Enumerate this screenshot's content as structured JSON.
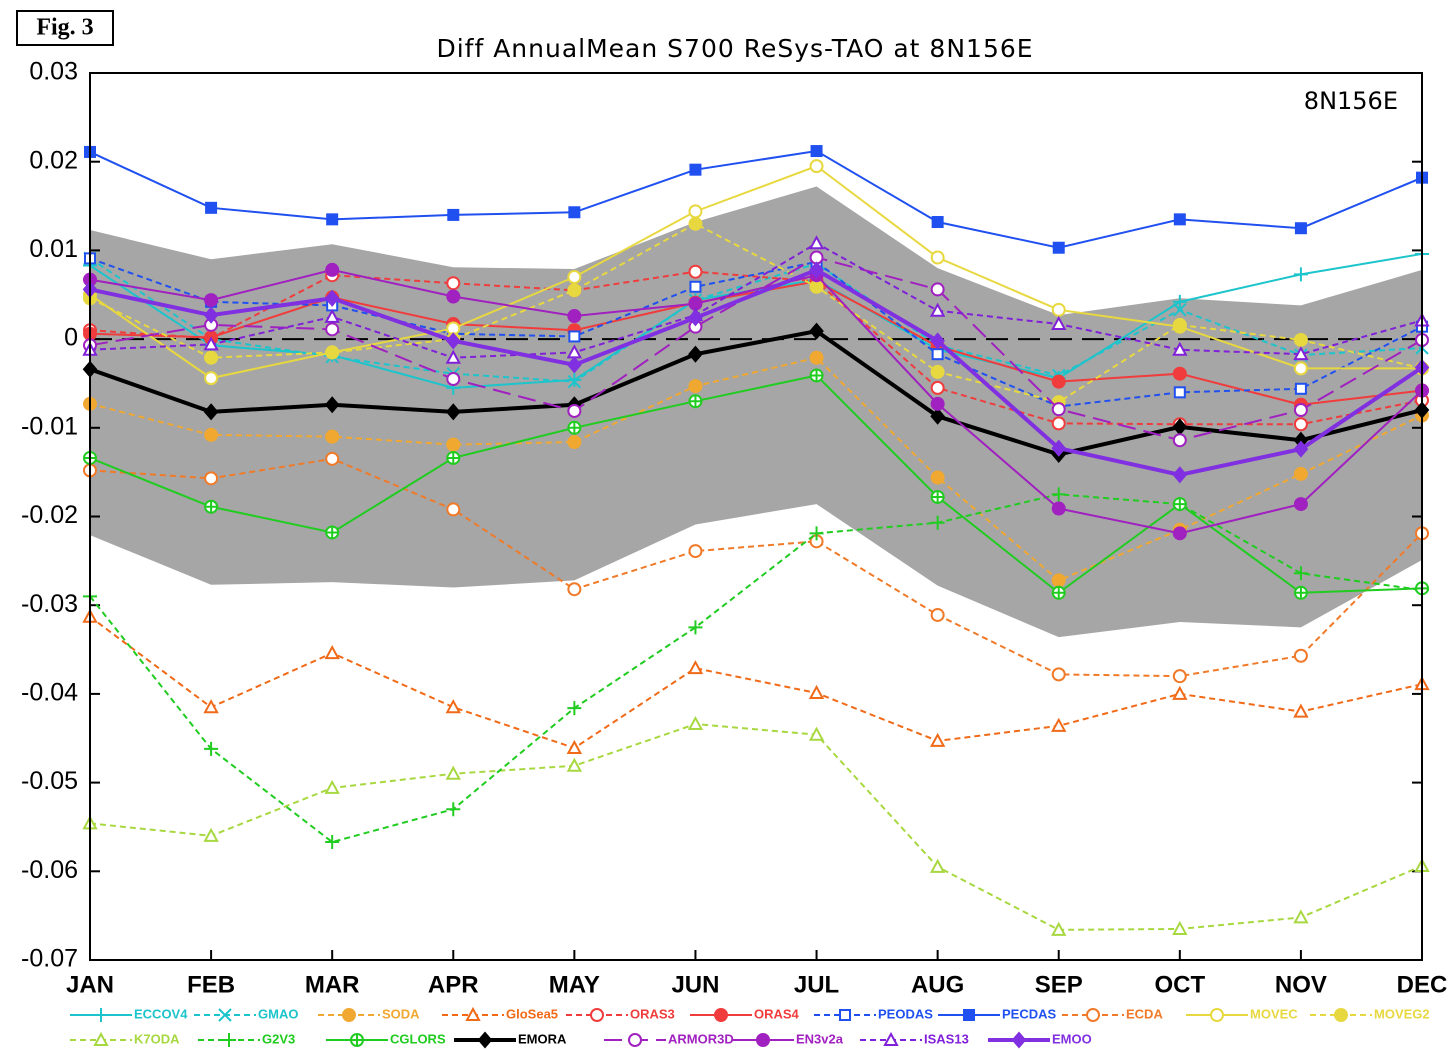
{
  "figure_label": "Fig. 3",
  "chart_data": {
    "type": "line",
    "title": "Diff AnnualMean S700 ReSys-TAO at 8N156E",
    "annotation": "8N156E",
    "categories": [
      "JAN",
      "FEB",
      "MAR",
      "APR",
      "MAY",
      "JUN",
      "JUL",
      "AUG",
      "SEP",
      "OCT",
      "NOV",
      "DEC"
    ],
    "ylim": [
      -0.07,
      0.03
    ],
    "yticks": [
      -0.07,
      -0.06,
      -0.05,
      -0.04,
      -0.03,
      -0.02,
      -0.01,
      0,
      0.01,
      0.02,
      0.03
    ],
    "reference_line": 0,
    "band": {
      "color": "#a6a6a6",
      "upper": [
        0.0123,
        0.009,
        0.0107,
        0.0081,
        0.0079,
        0.0132,
        0.0172,
        0.008,
        0.0027,
        0.0046,
        0.0038,
        0.0078
      ],
      "lower": [
        -0.0221,
        -0.0277,
        -0.0274,
        -0.028,
        -0.0272,
        -0.0209,
        -0.0186,
        -0.0278,
        -0.0336,
        -0.0319,
        -0.0325,
        -0.0249
      ]
    },
    "series": [
      {
        "name": "ECCOV4",
        "color": "#1cc4cc",
        "marker": "plus",
        "dash": "solid",
        "values": [
          0.0083,
          -0.0007,
          -0.0018,
          -0.0055,
          -0.0046,
          0.0044,
          0.0067,
          -0.0012,
          -0.0044,
          0.0042,
          0.0073,
          0.0096
        ]
      },
      {
        "name": "GMAO",
        "color": "#1cc4cc",
        "marker": "x",
        "dash": "dashed",
        "values": [
          0.0091,
          0,
          -0.002,
          -0.0039,
          -0.0048,
          0.0044,
          0.0085,
          -0.0007,
          -0.0041,
          0.0033,
          -0.0018,
          -0.001
        ]
      },
      {
        "name": "SODA",
        "color": "#f0a830",
        "marker": "circle-filled",
        "dash": "dashed",
        "values": [
          -0.0073,
          -0.0108,
          -0.011,
          -0.0119,
          -0.0116,
          -0.0053,
          -0.0021,
          -0.0156,
          -0.0272,
          -0.0215,
          -0.0152,
          -0.0086
        ]
      },
      {
        "name": "GloSea5",
        "color": "#f06a18",
        "marker": "triangle-open",
        "dash": "dashed",
        "values": [
          -0.0313,
          -0.0415,
          -0.0354,
          -0.0415,
          -0.0461,
          -0.0371,
          -0.0399,
          -0.0453,
          -0.0436,
          -0.04,
          -0.042,
          -0.0389
        ]
      },
      {
        "name": "ORAS3",
        "color": "#f03c3c",
        "marker": "circle-open",
        "dash": "dashed",
        "values": [
          0.001,
          0.0001,
          0.0072,
          0.0063,
          0.0055,
          0.0076,
          0.0065,
          -0.0055,
          -0.0095,
          -0.0096,
          -0.0096,
          -0.0069
        ]
      },
      {
        "name": "ORAS4",
        "color": "#f03c3c",
        "marker": "circle-filled",
        "dash": "solid",
        "values": [
          0.0006,
          0.0002,
          0.0047,
          0.0017,
          0.001,
          0.0041,
          0.0065,
          -0.0008,
          -0.0048,
          -0.0039,
          -0.0074,
          -0.0058
        ]
      },
      {
        "name": "PEODAS",
        "color": "#2050f0",
        "marker": "square-open",
        "dash": "dashed",
        "values": [
          0.0091,
          0.0042,
          0.0038,
          0.0006,
          0.0003,
          0.0059,
          0.0087,
          -0.0017,
          -0.0076,
          -0.006,
          -0.0056,
          0.0014
        ]
      },
      {
        "name": "PECDAS",
        "color": "#2050f0",
        "marker": "square-filled",
        "dash": "solid",
        "values": [
          0.0211,
          0.0148,
          0.0135,
          0.014,
          0.0143,
          0.0191,
          0.0212,
          0.0132,
          0.0103,
          0.0135,
          0.0125,
          0.0182
        ]
      },
      {
        "name": "ECDA",
        "color": "#f07a28",
        "marker": "circle-open",
        "dash": "dashed",
        "values": [
          -0.0148,
          -0.0157,
          -0.0135,
          -0.0192,
          -0.0282,
          -0.0239,
          -0.0228,
          -0.0311,
          -0.0378,
          -0.038,
          -0.0357,
          -0.0219
        ]
      },
      {
        "name": "MOVEC",
        "color": "#e8d840",
        "marker": "circle-open",
        "dash": "solid",
        "values": [
          0.005,
          -0.0044,
          -0.0015,
          0.0012,
          0.007,
          0.0144,
          0.0195,
          0.0092,
          0.0033,
          0.0014,
          -0.0033,
          -0.0033
        ]
      },
      {
        "name": "MOVEG2",
        "color": "#e8d840",
        "marker": "circle-filled",
        "dash": "dashed",
        "values": [
          0.0046,
          -0.0021,
          -0.0015,
          0,
          0.0055,
          0.013,
          0.0059,
          -0.0037,
          -0.0071,
          0.0016,
          -0.0001,
          -0.0033
        ]
      },
      {
        "name": "K7ODA",
        "color": "#a8d840",
        "marker": "triangle-open",
        "dash": "dashed",
        "values": [
          -0.0546,
          -0.056,
          -0.0506,
          -0.049,
          -0.0481,
          -0.0434,
          -0.0446,
          -0.0595,
          -0.0666,
          -0.0665,
          -0.0652,
          -0.0594
        ]
      },
      {
        "name": "G2V3",
        "color": "#20cc20",
        "marker": "plus",
        "dash": "dashed",
        "values": [
          -0.029,
          -0.0462,
          -0.0567,
          -0.053,
          -0.0416,
          -0.0325,
          -0.0219,
          -0.0207,
          -0.0175,
          -0.0186,
          -0.0264,
          -0.0283
        ]
      },
      {
        "name": "CGLORS",
        "color": "#20cc20",
        "marker": "circle-plus",
        "dash": "solid",
        "values": [
          -0.0134,
          -0.0189,
          -0.0218,
          -0.0134,
          -0.01,
          -0.007,
          -0.0041,
          -0.0178,
          -0.0286,
          -0.0186,
          -0.0286,
          -0.0281
        ]
      },
      {
        "name": "EMORA",
        "color": "#000000",
        "marker": "diamond",
        "dash": "solid",
        "thick": true,
        "values": [
          -0.0034,
          -0.0082,
          -0.0074,
          -0.0082,
          -0.0074,
          -0.0017,
          0.0009,
          -0.0087,
          -0.013,
          -0.0099,
          -0.0114,
          -0.008
        ]
      },
      {
        "name": "ARMOR3D",
        "color": "#a020c0",
        "marker": "circle-open",
        "dash": "longdash",
        "values": [
          -0.0007,
          0.0016,
          0.0011,
          -0.0045,
          -0.0081,
          0.0014,
          0.0092,
          0.0056,
          -0.0079,
          -0.0114,
          -0.008,
          -0.0001
        ]
      },
      {
        "name": "EN3v2a",
        "color": "#a020c0",
        "marker": "circle-filled",
        "dash": "solid",
        "values": [
          0.0067,
          0.0044,
          0.0078,
          0.0048,
          0.0026,
          0.004,
          0.0072,
          -0.0073,
          -0.0191,
          -0.0219,
          -0.0186,
          -0.0058
        ]
      },
      {
        "name": "ISAS13",
        "color": "#8020d8",
        "marker": "triangle-open",
        "dash": "dashed",
        "values": [
          -0.0012,
          -0.0006,
          0.0025,
          -0.0021,
          -0.0015,
          0.0027,
          0.0108,
          0.0032,
          0.0017,
          -0.0012,
          -0.0017,
          0.0021
        ]
      },
      {
        "name": "EMOO",
        "color": "#8030e0",
        "marker": "diamond",
        "dash": "solid",
        "thick": true,
        "values": [
          0.0056,
          0.0027,
          0.0046,
          -0.0002,
          -0.0029,
          0.0024,
          0.0078,
          -0.0002,
          -0.0123,
          -0.0153,
          -0.0124,
          -0.0032
        ]
      }
    ]
  }
}
